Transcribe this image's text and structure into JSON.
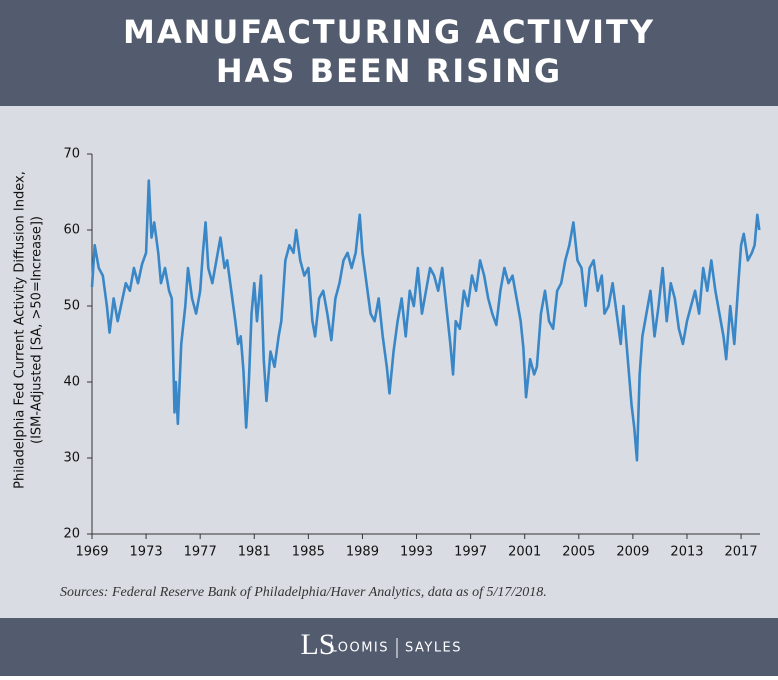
{
  "chart_data": {
    "type": "line",
    "title": [
      "MANUFACTURING ACTIVITY",
      "HAS BEEN RISING"
    ],
    "y_label": [
      "Philadelphia Fed Current Activity Diffusion Index,",
      "(ISM-Adjusted [SA, >50=Increase])"
    ],
    "source": "Sources: Federal Reserve Bank of Philadelphia/Haver Analytics, data as of 5/17/2018.",
    "xlim": [
      1969,
      2018.4
    ],
    "xticks": [
      1969,
      1973,
      1977,
      1981,
      1985,
      1989,
      1993,
      1997,
      2001,
      2005,
      2009,
      2013,
      2017
    ],
    "ylim": [
      20,
      70
    ],
    "yticks": [
      20,
      30,
      40,
      50,
      60,
      70
    ],
    "x": [
      1969.0,
      1969.2,
      1969.5,
      1969.8,
      1970.1,
      1970.3,
      1970.6,
      1970.9,
      1971.2,
      1971.5,
      1971.8,
      1972.1,
      1972.4,
      1972.7,
      1973.0,
      1973.2,
      1973.4,
      1973.6,
      1973.9,
      1974.1,
      1974.4,
      1974.7,
      1974.9,
      1975.1,
      1975.2,
      1975.35,
      1975.6,
      1975.9,
      1976.1,
      1976.4,
      1976.7,
      1977.0,
      1977.2,
      1977.4,
      1977.6,
      1977.9,
      1978.2,
      1978.5,
      1978.8,
      1979.0,
      1979.3,
      1979.6,
      1979.8,
      1980.0,
      1980.2,
      1980.4,
      1980.6,
      1980.8,
      1981.0,
      1981.2,
      1981.5,
      1981.7,
      1981.9,
      1982.2,
      1982.5,
      1982.8,
      1983.0,
      1983.3,
      1983.6,
      1983.9,
      1984.1,
      1984.4,
      1984.7,
      1985.0,
      1985.3,
      1985.5,
      1985.8,
      1986.1,
      1986.4,
      1986.7,
      1987.0,
      1987.3,
      1987.6,
      1987.9,
      1988.2,
      1988.5,
      1988.8,
      1989.0,
      1989.3,
      1989.6,
      1989.9,
      1990.2,
      1990.5,
      1990.8,
      1991.0,
      1991.3,
      1991.6,
      1991.9,
      1992.2,
      1992.5,
      1992.8,
      1993.1,
      1993.4,
      1993.7,
      1994.0,
      1994.3,
      1994.6,
      1994.9,
      1995.2,
      1995.5,
      1995.7,
      1995.9,
      1996.2,
      1996.5,
      1996.8,
      1997.1,
      1997.4,
      1997.7,
      1998.0,
      1998.3,
      1998.6,
      1998.9,
      1999.2,
      1999.5,
      1999.8,
      2000.1,
      2000.4,
      2000.7,
      2000.9,
      2001.1,
      2001.4,
      2001.7,
      2001.9,
      2002.2,
      2002.5,
      2002.8,
      2003.1,
      2003.4,
      2003.7,
      2004.0,
      2004.3,
      2004.6,
      2004.9,
      2005.2,
      2005.5,
      2005.8,
      2006.1,
      2006.4,
      2006.7,
      2006.9,
      2007.2,
      2007.5,
      2007.8,
      2008.1,
      2008.3,
      2008.6,
      2008.9,
      2009.1,
      2009.3,
      2009.5,
      2009.7,
      2010.0,
      2010.3,
      2010.6,
      2010.9,
      2011.2,
      2011.5,
      2011.8,
      2012.1,
      2012.4,
      2012.7,
      2013.0,
      2013.3,
      2013.6,
      2013.9,
      2014.2,
      2014.5,
      2014.8,
      2015.1,
      2015.4,
      2015.7,
      2015.9,
      2016.2,
      2016.5,
      2016.8,
      2017.0,
      2017.2,
      2017.5,
      2017.8,
      2018.0,
      2018.2,
      2018.35
    ],
    "series": [
      {
        "name": "Philadelphia Fed Current Activity Diffusion Index",
        "color": "#3a87c8",
        "values": [
          52.5,
          58,
          55,
          54,
          50,
          46.5,
          51,
          48,
          50.5,
          53,
          52,
          55,
          53,
          55.5,
          57,
          66.5,
          59,
          61,
          57,
          53,
          55,
          52,
          51,
          36,
          40,
          34.5,
          45,
          50,
          55,
          51,
          49,
          52,
          57,
          61,
          55,
          53,
          56,
          59,
          55,
          56,
          52,
          48,
          45,
          46,
          41.5,
          34,
          40,
          49,
          53,
          48,
          54,
          43,
          37.5,
          44,
          42,
          46,
          48,
          56,
          58,
          57,
          60,
          56,
          54,
          55,
          48,
          46,
          51,
          52,
          49,
          45.5,
          51,
          53,
          56,
          57,
          55,
          57,
          62,
          57,
          53,
          49,
          48,
          51,
          46,
          42,
          38.5,
          44,
          48,
          51,
          46,
          52,
          50,
          55,
          49,
          52,
          55,
          54,
          52,
          55,
          50,
          45,
          41,
          48,
          47,
          52,
          50,
          54,
          52,
          56,
          54,
          51,
          49,
          47.5,
          52,
          55,
          53,
          54,
          51,
          48,
          44.5,
          38,
          43,
          41,
          42,
          49,
          52,
          48,
          47,
          52,
          53,
          56,
          58,
          61,
          56,
          55,
          50,
          55,
          56,
          52,
          54,
          49,
          50,
          53,
          49,
          45,
          50,
          43.5,
          37,
          34,
          29.7,
          41,
          46,
          49,
          52,
          46,
          50,
          55,
          48,
          53,
          51,
          47,
          45,
          48,
          50,
          52,
          49,
          55,
          52,
          56,
          52,
          49,
          46,
          43,
          50,
          45,
          53,
          58,
          59.5,
          56,
          57,
          58,
          62,
          60
        ]
      }
    ]
  },
  "footer": {
    "logo": "LS",
    "brand_left": "LOOMIS",
    "brand_right": "SAYLES"
  }
}
